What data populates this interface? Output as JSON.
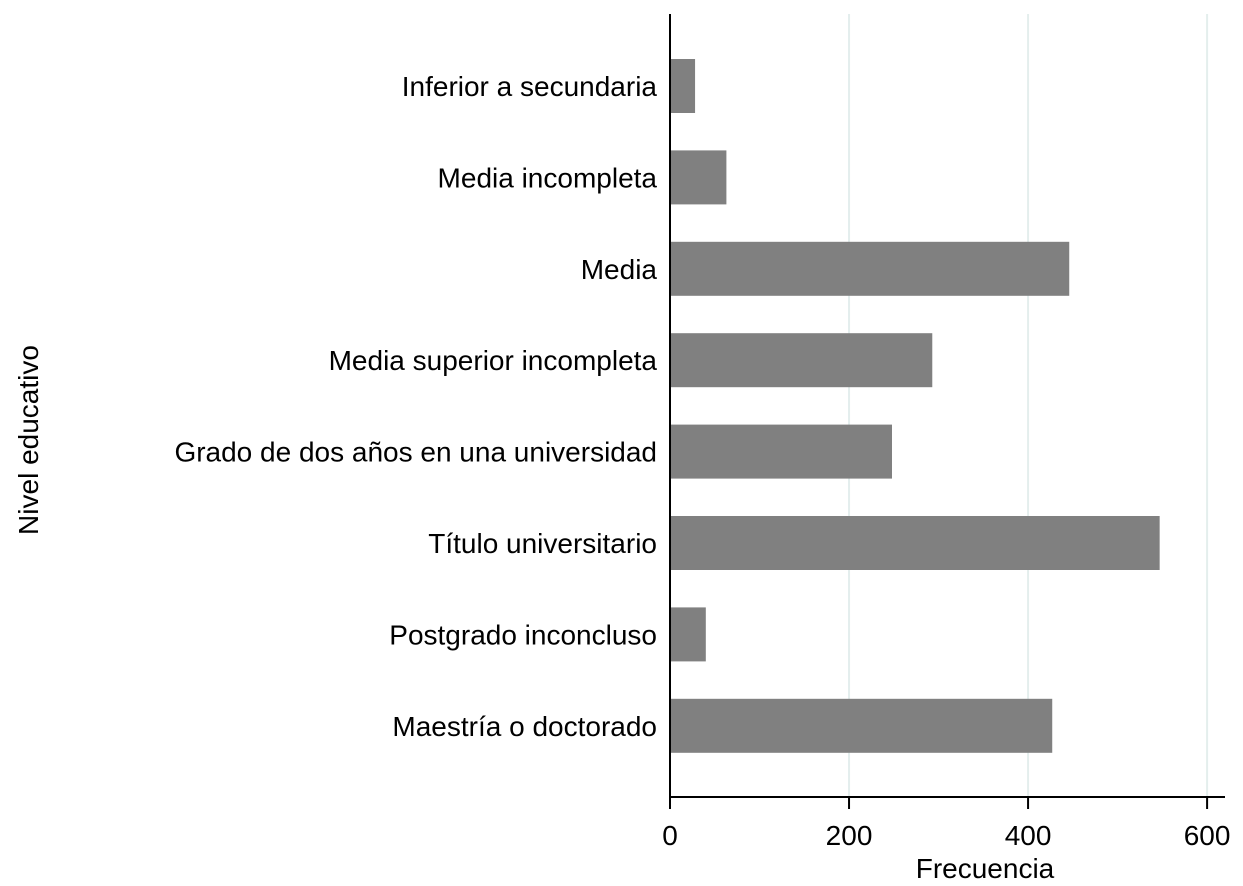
{
  "chart_data": {
    "type": "bar",
    "orientation": "horizontal",
    "categories": [
      "Inferior a secundaria",
      "Media incompleta",
      "Media",
      "Media superior incompleta",
      "Grado de dos años en una universidad",
      "Título universitario",
      "Postgrado inconcluso",
      "Maestría o doctorado"
    ],
    "values": [
      28,
      63,
      446,
      293,
      248,
      547,
      40,
      427
    ],
    "color": "#808080",
    "xlim": [
      0,
      620
    ],
    "xticks": [
      0,
      200,
      400,
      600
    ],
    "grid": true,
    "x_label": "Frecuencia",
    "y_label": "Nivel educativo"
  }
}
